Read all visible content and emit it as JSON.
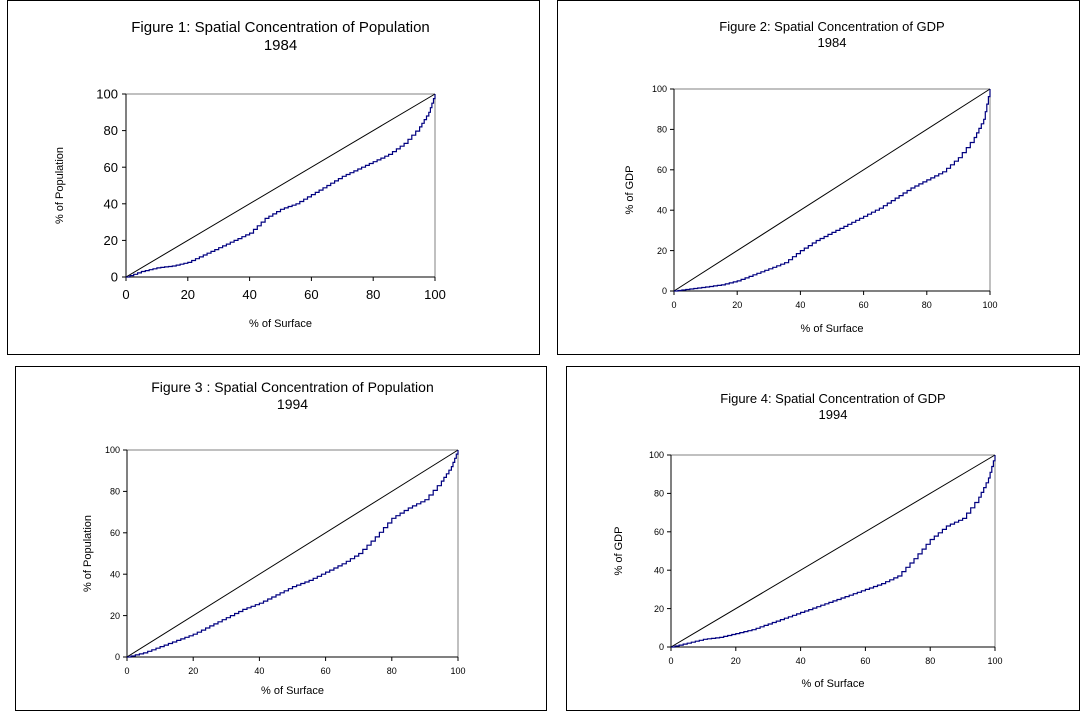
{
  "chart_data": [
    {
      "type": "line",
      "title": "Figure 1: Spatial Concentration of Population",
      "subtitle": "1984",
      "xlabel": "% of Surface",
      "ylabel": "% of Population",
      "xlim": [
        0,
        100
      ],
      "ylim": [
        0,
        100
      ],
      "xticks": [
        "0",
        "20",
        "40",
        "60",
        "80",
        "100"
      ],
      "yticks": [
        "0",
        "20",
        "40",
        "60",
        "80",
        "100"
      ],
      "grid": false,
      "series": [
        {
          "x": [
            0,
            100
          ],
          "y": [
            0,
            100
          ]
        },
        {
          "x": [
            0,
            5,
            10,
            15,
            20,
            25,
            30,
            35,
            40,
            45,
            50,
            55,
            60,
            65,
            70,
            75,
            80,
            85,
            90,
            95,
            98,
            100
          ],
          "y": [
            0,
            3,
            5,
            6,
            8,
            12,
            16,
            20,
            24,
            32,
            37,
            40,
            45,
            50,
            55,
            59,
            63,
            67,
            73,
            82,
            90,
            100
          ]
        }
      ]
    },
    {
      "type": "line",
      "title": "Figure 2: Spatial Concentration of GDP",
      "subtitle": "1984",
      "xlabel": "% of Surface",
      "ylabel": "% of GDP",
      "xlim": [
        0,
        100
      ],
      "ylim": [
        0,
        100
      ],
      "xticks": [
        "0",
        "20",
        "40",
        "60",
        "80",
        "100"
      ],
      "yticks": [
        "0",
        "20",
        "40",
        "60",
        "80",
        "100"
      ],
      "grid": false,
      "series": [
        {
          "x": [
            0,
            100
          ],
          "y": [
            0,
            100
          ]
        },
        {
          "x": [
            0,
            5,
            10,
            15,
            20,
            25,
            30,
            35,
            40,
            45,
            50,
            55,
            60,
            65,
            70,
            75,
            80,
            85,
            90,
            95,
            98,
            100
          ],
          "y": [
            0,
            1,
            2,
            3,
            5,
            8,
            11,
            14,
            20,
            25,
            29,
            33,
            37,
            41,
            46,
            51,
            55,
            59,
            66,
            76,
            85,
            100
          ]
        }
      ]
    },
    {
      "type": "line",
      "title": "Figure 3 : Spatial Concentration of Population",
      "subtitle": "1994",
      "xlabel": "% of Surface",
      "ylabel": "% of Population",
      "xlim": [
        0,
        100
      ],
      "ylim": [
        0,
        100
      ],
      "xticks": [
        "0",
        "20",
        "40",
        "60",
        "80",
        "100"
      ],
      "yticks": [
        "0",
        "20",
        "40",
        "60",
        "80",
        "100"
      ],
      "grid": false,
      "series": [
        {
          "x": [
            0,
            100
          ],
          "y": [
            0,
            100
          ]
        },
        {
          "x": [
            0,
            5,
            10,
            15,
            20,
            25,
            30,
            35,
            40,
            45,
            50,
            55,
            60,
            65,
            70,
            75,
            80,
            85,
            90,
            95,
            98,
            100
          ],
          "y": [
            0,
            2,
            5,
            8,
            11,
            15,
            19,
            23,
            26,
            30,
            34,
            37,
            41,
            45,
            50,
            58,
            67,
            72,
            76,
            85,
            92,
            100
          ]
        }
      ]
    },
    {
      "type": "line",
      "title": "Figure 4: Spatial Concentration of GDP",
      "subtitle": "1994",
      "xlabel": "% of Surface",
      "ylabel": "% of GDP",
      "xlim": [
        0,
        100
      ],
      "ylim": [
        0,
        100
      ],
      "xticks": [
        "0",
        "20",
        "40",
        "60",
        "80",
        "100"
      ],
      "yticks": [
        "0",
        "20",
        "40",
        "60",
        "80",
        "100"
      ],
      "grid": false,
      "series": [
        {
          "x": [
            0,
            100
          ],
          "y": [
            0,
            100
          ]
        },
        {
          "x": [
            0,
            5,
            10,
            15,
            20,
            25,
            30,
            35,
            40,
            45,
            50,
            55,
            60,
            65,
            70,
            75,
            80,
            85,
            90,
            95,
            98,
            100
          ],
          "y": [
            0,
            2,
            4,
            5,
            7,
            9,
            12,
            15,
            18,
            21,
            24,
            27,
            30,
            33,
            37,
            46,
            56,
            63,
            67,
            78,
            88,
            100
          ]
        }
      ]
    }
  ]
}
